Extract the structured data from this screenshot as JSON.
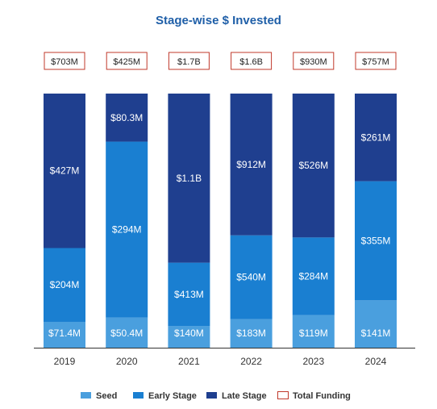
{
  "chart_data": {
    "type": "bar",
    "stacked": true,
    "title": "Stage-wise $ Invested",
    "xlabel": "",
    "ylabel": "",
    "categories": [
      "2019",
      "2020",
      "2021",
      "2022",
      "2023",
      "2024"
    ],
    "series": [
      {
        "name": "Seed",
        "values": [
          71.4,
          50.4,
          140,
          183,
          119,
          141
        ],
        "labels": [
          "$71.4M",
          "$50.4M",
          "$140M",
          "$183M",
          "$119M",
          "$141M"
        ]
      },
      {
        "name": "Early Stage",
        "values": [
          204,
          294,
          413,
          540,
          284,
          355
        ],
        "labels": [
          "$204M",
          "$294M",
          "$413M",
          "$540M",
          "$284M",
          "$355M"
        ]
      },
      {
        "name": "Late Stage",
        "values": [
          427,
          80.3,
          1100,
          912,
          526,
          261
        ],
        "labels": [
          "$427M",
          "$80.3M",
          "$1.1B",
          "$912M",
          "$526M",
          "$261M"
        ]
      }
    ],
    "totals": {
      "name": "Total Funding",
      "values": [
        703,
        425,
        1700,
        1600,
        930,
        757
      ],
      "labels": [
        "$703M",
        "$425M",
        "$1.7B",
        "$1.6B",
        "$930M",
        "$757M"
      ]
    },
    "normalized_to_100_percent": true,
    "colors": {
      "seed": "#4a9fde",
      "early": "#1a7fd1",
      "late": "#1f3f8f",
      "total_border": "#c0392b",
      "title": "#1f5fa8",
      "label": "#ffffff"
    },
    "legend_position": "bottom",
    "grid": false
  }
}
